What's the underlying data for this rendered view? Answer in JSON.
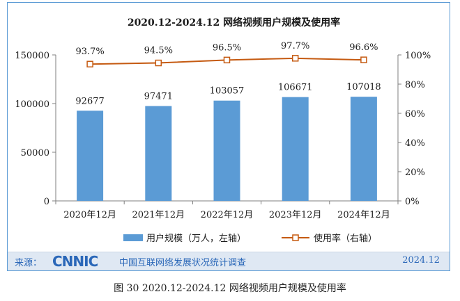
{
  "chart_data": {
    "type": "bar+line",
    "title": "2020.12-2024.12 网络视频用户规模及使用率",
    "categories": [
      "2020年12月",
      "2021年12月",
      "2022年12月",
      "2023年12月",
      "2024年12月"
    ],
    "series": [
      {
        "name": "用户规模（万人，左轴）",
        "kind": "bar",
        "axis": "left",
        "color": "#5b9bd5",
        "values": [
          92677,
          97471,
          103057,
          106671,
          107018
        ],
        "labels": [
          "92677",
          "97471",
          "103057",
          "106671",
          "107018"
        ]
      },
      {
        "name": "使用率（右轴）",
        "kind": "line",
        "axis": "right",
        "color": "#c55a11",
        "values": [
          93.7,
          94.5,
          96.5,
          97.7,
          96.6
        ],
        "labels": [
          "93.7%",
          "94.5%",
          "96.5%",
          "97.7%",
          "96.6%"
        ]
      }
    ],
    "y_left": {
      "min": 0,
      "max": 150000,
      "ticks": [
        0,
        50000,
        100000,
        150000
      ],
      "tick_labels": [
        "0",
        "50000",
        "100000",
        "150000"
      ]
    },
    "y_right": {
      "min": 0,
      "max": 100,
      "ticks": [
        0,
        20,
        40,
        60,
        80,
        100
      ],
      "tick_labels": [
        "0%",
        "20%",
        "40%",
        "60%",
        "80%",
        "100%"
      ]
    },
    "legend": {
      "position": "bottom"
    },
    "grid": false
  },
  "footer": {
    "source_label": "来源：",
    "logo_text": "CNNIC",
    "subtitle": "中国互联网络发展状况统计调查",
    "date": "2024.12"
  },
  "caption": "图  30    2020.12-2024.12 网络视频用户规模及使用率"
}
